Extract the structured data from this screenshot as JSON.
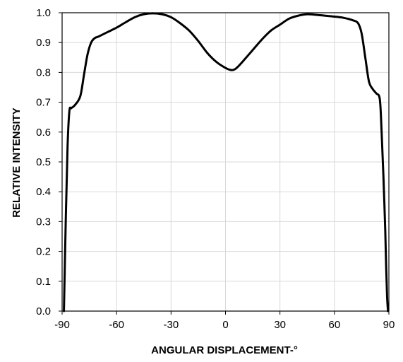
{
  "chart_data": {
    "type": "line",
    "title": "",
    "xlabel": "ANGULAR DISPLACEMENT-°",
    "ylabel": "RELATIVE INTENSITY",
    "xlim": [
      -90,
      90
    ],
    "ylim": [
      0,
      1.0
    ],
    "x_ticks": [
      -90,
      -60,
      -30,
      0,
      30,
      60,
      90
    ],
    "x_tick_labels": [
      "-90",
      "-60",
      "-30",
      "0",
      "30",
      "60",
      "90"
    ],
    "y_ticks": [
      0,
      0.1,
      0.2,
      0.3,
      0.4,
      0.5,
      0.6,
      0.7,
      0.8,
      0.9,
      1.0
    ],
    "y_tick_labels": [
      "0.0",
      "0.1",
      "0.2",
      "0.3",
      "0.4",
      "0.5",
      "0.6",
      "0.7",
      "0.8",
      "0.9",
      "1.0"
    ],
    "grid": true,
    "legend": "none",
    "colors": {
      "line": "#000000",
      "grid": "#d9d9d9",
      "axis": "#000000"
    },
    "series": [
      {
        "x": [
          -89,
          -88,
          -87,
          -86,
          -85,
          -83,
          -80,
          -78,
          -76,
          -74,
          -72,
          -70,
          -65,
          -60,
          -55,
          -50,
          -45,
          -40,
          -35,
          -30,
          -25,
          -20,
          -15,
          -10,
          -5,
          0,
          3,
          5,
          7,
          10,
          15,
          20,
          25,
          30,
          35,
          40,
          45,
          50,
          55,
          60,
          65,
          70,
          73,
          75,
          77,
          79,
          81,
          83,
          85,
          86,
          87,
          88,
          88.5,
          89,
          89.5
        ],
        "y": [
          0.0,
          0.3,
          0.55,
          0.67,
          0.68,
          0.69,
          0.72,
          0.79,
          0.86,
          0.9,
          0.915,
          0.92,
          0.935,
          0.95,
          0.968,
          0.985,
          0.995,
          0.998,
          0.995,
          0.985,
          0.965,
          0.94,
          0.905,
          0.865,
          0.835,
          0.815,
          0.808,
          0.81,
          0.82,
          0.84,
          0.875,
          0.91,
          0.94,
          0.96,
          0.98,
          0.99,
          0.995,
          0.993,
          0.99,
          0.987,
          0.983,
          0.975,
          0.965,
          0.93,
          0.85,
          0.77,
          0.745,
          0.73,
          0.71,
          0.6,
          0.45,
          0.27,
          0.15,
          0.05,
          0.0
        ]
      }
    ]
  }
}
